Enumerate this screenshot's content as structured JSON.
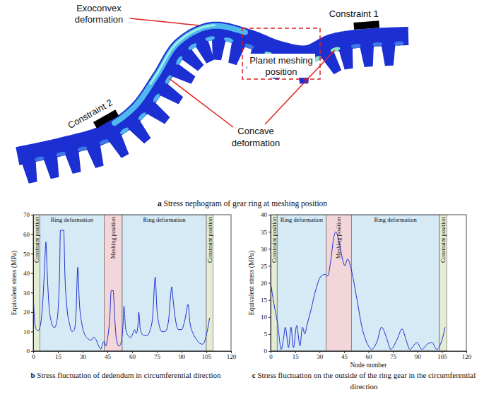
{
  "diagram": {
    "title": "a Stress nephogram of gear ring at meshing position",
    "exoconvex": [
      "Exoconvex",
      "deformation"
    ],
    "constraint1": "Constraint 1",
    "constraint2": "Constraint 2",
    "meshing": [
      "Planet meshing",
      "position"
    ],
    "concave": [
      "Concave",
      "deformation"
    ]
  },
  "chart_data": [
    {
      "type": "line",
      "title": "b Stress fluctuation of dedendum in circumferential direction",
      "y_label": "Equivalent stress (MPa)",
      "xlim": [
        0,
        120
      ],
      "xticks": [
        0,
        15,
        30,
        45,
        60,
        75,
        90,
        105,
        120
      ],
      "ylim": [
        0,
        70
      ],
      "yticks": [
        0,
        10,
        20,
        30,
        40,
        50,
        60,
        70
      ],
      "color": "#1c2fd0",
      "x": [
        0,
        1,
        2,
        3,
        4,
        5,
        6,
        7,
        7.7,
        8.5,
        9.5,
        11,
        12,
        13,
        14,
        15,
        16,
        16.5,
        18.5,
        19.2,
        20.5,
        22,
        23.5,
        25,
        26,
        27,
        28,
        29.5,
        31,
        33,
        35,
        36.5,
        38,
        39.5,
        41,
        42,
        43,
        44,
        45,
        46.5,
        47.3,
        48.5,
        49.5,
        50.5,
        52,
        53.5,
        54.5,
        55,
        56,
        57.5,
        59,
        60.5,
        61.5,
        62.5,
        63.5,
        64,
        65,
        67,
        69,
        71,
        72.5,
        74,
        75,
        76.5,
        78,
        80,
        82,
        83.5,
        84,
        85,
        86.5,
        88,
        90,
        92,
        94,
        95,
        97,
        99,
        101,
        102.5,
        104,
        105.5,
        107
      ],
      "values": [
        30,
        14,
        11,
        10.5,
        12,
        17,
        28,
        45,
        56,
        40,
        24,
        15,
        12.5,
        12,
        14,
        20,
        40,
        62,
        62,
        40,
        22,
        14,
        10,
        11,
        20,
        43,
        25,
        14,
        9,
        6.5,
        5.5,
        7,
        6,
        3,
        1,
        3.5,
        5,
        2.5,
        6,
        18,
        31,
        31,
        16,
        6,
        2.5,
        5,
        14,
        23,
        12,
        8,
        7,
        9,
        11,
        9,
        13,
        20,
        11,
        8,
        8,
        11,
        18,
        38,
        22,
        13,
        10,
        10,
        15,
        30,
        33,
        25,
        15,
        11,
        11,
        16,
        24,
        15,
        9,
        6,
        4,
        3.5,
        5,
        10,
        17
      ],
      "regions": [
        {
          "label": "Constraint position",
          "x0": 0,
          "x1": 4,
          "color": "#e4ecd3"
        },
        {
          "label": "Ring deformation",
          "x0": 4,
          "x1": 43,
          "color": "#d6eaf6"
        },
        {
          "label": "Meshing position",
          "x0": 43,
          "x1": 54,
          "color": "#f3d6d9"
        },
        {
          "label": "Ring deformation",
          "x0": 54,
          "x1": 105,
          "color": "#d6eaf6"
        },
        {
          "label": "Constraint position",
          "x0": 105,
          "x1": 109,
          "color": "#e4ecd3"
        }
      ]
    },
    {
      "type": "line",
      "title": "c Stress fluctuation on the outside of the ring gear in the circumferential direction",
      "x_label": "Node number",
      "y_label": "Equivalent stress (MPa)",
      "xlim": [
        0,
        120
      ],
      "xticks": [
        0,
        15,
        30,
        45,
        60,
        75,
        90,
        105,
        120
      ],
      "ylim": [
        0,
        40
      ],
      "yticks": [
        0,
        5,
        10,
        15,
        20,
        25,
        30,
        35,
        40
      ],
      "color": "#1c2fd0",
      "x": [
        0,
        2,
        4.3,
        6.5,
        8,
        9,
        11,
        12.5,
        14,
        16,
        18,
        19.5,
        21,
        22,
        24.7,
        27.7,
        31,
        33.4,
        35,
        37,
        38.6,
        40,
        42,
        44.6,
        45.5,
        47.2,
        49.4,
        53,
        56,
        59.4,
        62,
        65.4,
        68,
        71,
        73.7,
        77.6,
        80.6,
        83.2,
        85.4,
        89.7,
        92.7,
        96,
        99,
        101.8,
        104.9,
        107
      ],
      "values": [
        20,
        14,
        8,
        0.5,
        4,
        7,
        1,
        7,
        1,
        7.5,
        1.5,
        7,
        5,
        7,
        12,
        18,
        22,
        22.5,
        22,
        27,
        33,
        35,
        32,
        26,
        25,
        27,
        24,
        15,
        7,
        2,
        0.5,
        3,
        7,
        4,
        0.5,
        3.5,
        6.5,
        3,
        0.5,
        2.5,
        0.5,
        2,
        2.5,
        0.5,
        3,
        7
      ],
      "regions": [
        {
          "label": "Constraint position",
          "x0": 0,
          "x1": 4,
          "color": "#e4ecd3"
        },
        {
          "label": "Ring deformation",
          "x0": 4,
          "x1": 34,
          "color": "#d6eaf6"
        },
        {
          "label": "Meshing position",
          "x0": 34,
          "x1": 49.5,
          "color": "#f3d6d9"
        },
        {
          "label": "Ring deformation",
          "x0": 49.5,
          "x1": 103.5,
          "color": "#d6eaf6"
        },
        {
          "label": "Constraint position",
          "x0": 103.5,
          "x1": 108,
          "color": "#e4ecd3"
        }
      ]
    }
  ]
}
